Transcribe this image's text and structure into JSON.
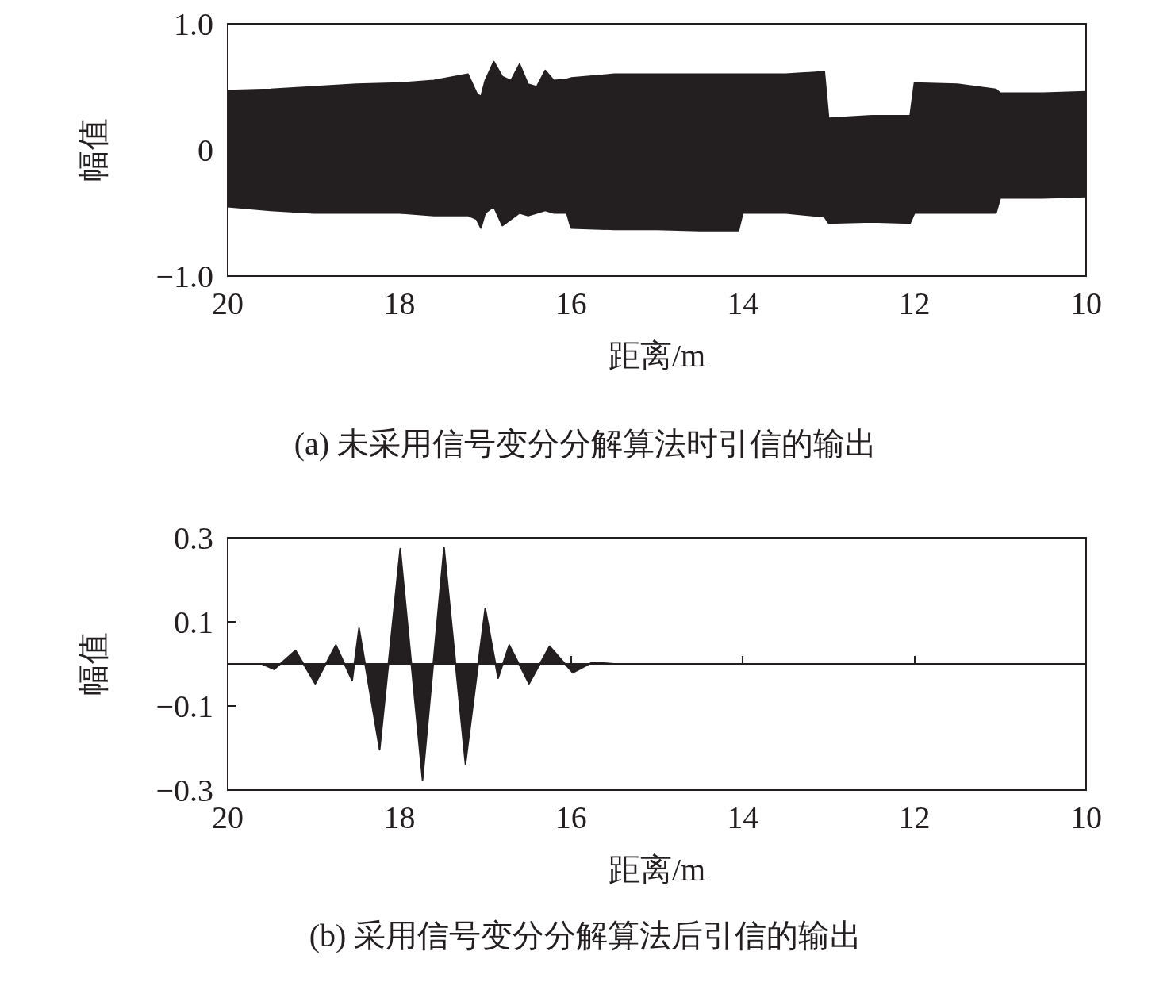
{
  "chart_data": [
    {
      "type": "area",
      "title": "(a) 未采用信号变分分解算法时引信的输出",
      "xlabel": "距离/m",
      "ylabel": "幅值",
      "xlim": [
        20,
        10
      ],
      "xticks": [
        20,
        18,
        16,
        14,
        12,
        10
      ],
      "ylim": [
        -1,
        1
      ],
      "yticks": [
        {
          "value": -1,
          "label": "−1.0"
        },
        0,
        {
          "value": 1,
          "label": "1.0"
        }
      ],
      "grid": false,
      "series": [
        {
          "color": "#231f20",
          "x": [
            20,
            19.5,
            19,
            18.5,
            18,
            17.6,
            17.2,
            17.1,
            17.05,
            17.0,
            16.9,
            16.8,
            16.7,
            16.6,
            16.5,
            16.4,
            16.3,
            16.2,
            16.05,
            16.0,
            15.5,
            15,
            14.5,
            14.05,
            14.0,
            13.5,
            13.05,
            13.0,
            12.5,
            12.05,
            12.0,
            11.5,
            11.05,
            11.0,
            10.5,
            10
          ],
          "values": [
            0.47,
            0.48,
            0.5,
            0.52,
            0.53,
            0.55,
            0.6,
            0.45,
            0.42,
            0.55,
            0.7,
            0.58,
            0.55,
            0.68,
            0.52,
            0.5,
            0.63,
            0.55,
            0.56,
            0.57,
            0.6,
            0.6,
            0.6,
            0.6,
            0.6,
            0.6,
            0.62,
            0.25,
            0.27,
            0.27,
            0.53,
            0.52,
            0.48,
            0.45,
            0.45,
            0.46
          ]
        },
        {
          "color": "#231f20",
          "x": [
            20,
            19.5,
            19,
            18.5,
            18,
            17.6,
            17.2,
            17.1,
            17.05,
            17.0,
            16.9,
            16.8,
            16.7,
            16.6,
            16.5,
            16.4,
            16.3,
            16.2,
            16.05,
            16.0,
            15.5,
            15,
            14.5,
            14.05,
            14.0,
            13.5,
            13.05,
            13.0,
            12.5,
            12.05,
            12.0,
            11.5,
            11.05,
            11.0,
            10.5,
            10
          ],
          "values": [
            -0.45,
            -0.48,
            -0.5,
            -0.5,
            -0.5,
            -0.52,
            -0.52,
            -0.55,
            -0.62,
            -0.5,
            -0.45,
            -0.6,
            -0.55,
            -0.5,
            -0.52,
            -0.5,
            -0.48,
            -0.5,
            -0.5,
            -0.62,
            -0.63,
            -0.63,
            -0.64,
            -0.64,
            -0.5,
            -0.5,
            -0.53,
            -0.58,
            -0.57,
            -0.58,
            -0.5,
            -0.5,
            -0.5,
            -0.38,
            -0.38,
            -0.37
          ]
        }
      ]
    },
    {
      "type": "area",
      "title": "(b) 采用信号变分分解算法后引信的输出",
      "xlabel": "距离/m",
      "ylabel": "幅值",
      "xlim": [
        20,
        10
      ],
      "xticks": [
        20,
        18,
        16,
        14,
        12,
        10
      ],
      "ylim": [
        -0.3,
        0.3
      ],
      "yticks": [
        {
          "value": -0.3,
          "label": "−0.3"
        },
        {
          "value": -0.1,
          "label": "−0.1"
        },
        0.1,
        0.3
      ],
      "grid": false,
      "series": [
        {
          "color": "#231f20",
          "x": [
            20,
            19.6,
            19.46,
            19.21,
            18.98,
            18.74,
            18.55,
            18.47,
            18.23,
            17.99,
            17.73,
            17.48,
            17.23,
            17.0,
            16.85,
            16.72,
            16.49,
            16.25,
            15.98,
            15.75,
            15.5,
            10
          ],
          "values": [
            0,
            0,
            -0.013,
            0.032,
            -0.047,
            0.045,
            -0.04,
            0.085,
            -0.204,
            0.274,
            -0.276,
            0.277,
            -0.238,
            0.132,
            -0.034,
            0.045,
            -0.047,
            0.042,
            -0.021,
            0.004,
            0,
            0
          ]
        }
      ]
    }
  ]
}
